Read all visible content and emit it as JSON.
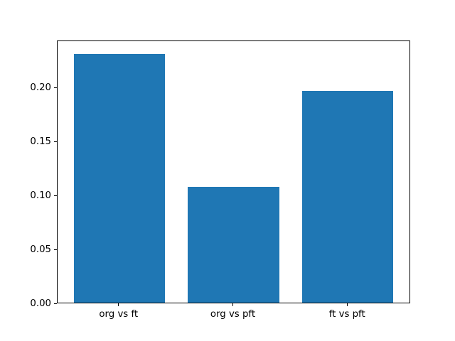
{
  "chart_data": {
    "type": "bar",
    "title": "",
    "xlabel": "",
    "ylabel": "",
    "categories": [
      "org vs ft",
      "org vs pft",
      "ft vs pft"
    ],
    "values": [
      0.232,
      0.108,
      0.197
    ],
    "ylim": [
      0,
      0.2436
    ],
    "yticks": [
      0.0,
      0.05,
      0.1,
      0.15,
      0.2
    ],
    "ytick_labels": [
      "0.00",
      "0.05",
      "0.10",
      "0.15",
      "0.20"
    ],
    "grid": false,
    "legend": false,
    "colors": {
      "bar": "#1f77b4",
      "spine": "#000000",
      "text": "#000000",
      "background": "#ffffff"
    }
  }
}
